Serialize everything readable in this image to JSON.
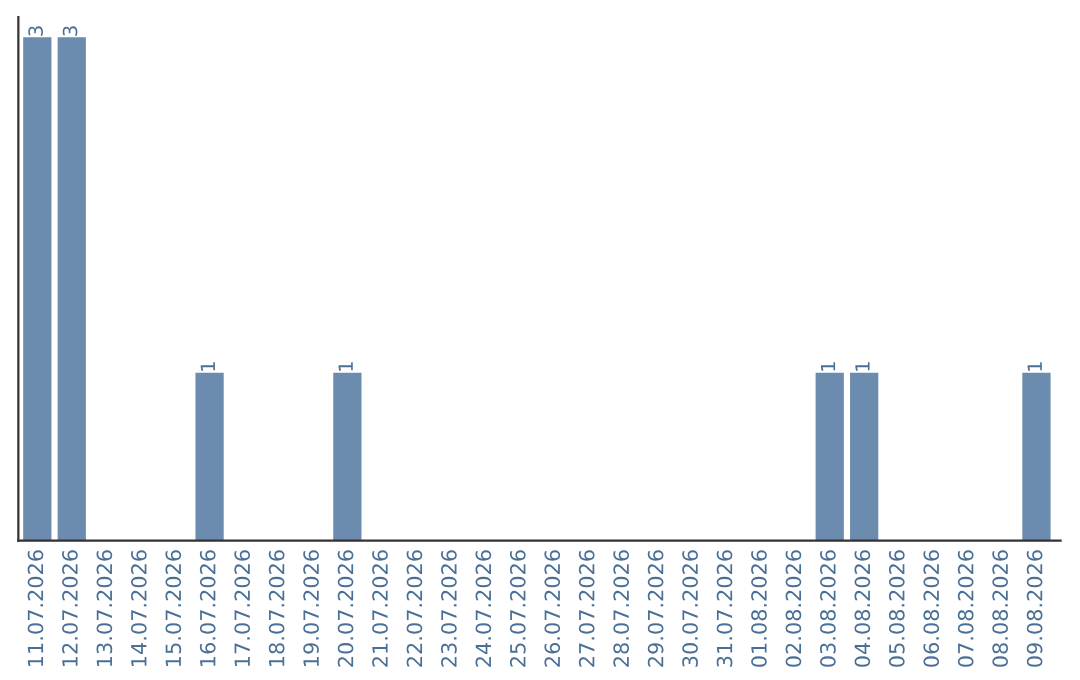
{
  "chart_data": {
    "type": "bar",
    "categories": [
      "11.07.2026",
      "12.07.2026",
      "13.07.2026",
      "14.07.2026",
      "15.07.2026",
      "16.07.2026",
      "17.07.2026",
      "18.07.2026",
      "19.07.2026",
      "20.07.2026",
      "21.07.2026",
      "22.07.2026",
      "23.07.2026",
      "24.07.2026",
      "25.07.2026",
      "26.07.2026",
      "27.07.2026",
      "28.07.2026",
      "29.07.2026",
      "30.07.2026",
      "31.07.2026",
      "01.08.2026",
      "02.08.2026",
      "03.08.2026",
      "04.08.2026",
      "05.08.2026",
      "06.08.2026",
      "07.08.2026",
      "08.08.2026",
      "09.08.2026"
    ],
    "values": [
      3,
      3,
      0,
      0,
      0,
      1,
      0,
      0,
      0,
      1,
      0,
      0,
      0,
      0,
      0,
      0,
      0,
      0,
      0,
      0,
      0,
      0,
      0,
      1,
      1,
      0,
      0,
      0,
      0,
      1
    ],
    "value_labels": [
      "3",
      "3",
      null,
      null,
      null,
      "1",
      null,
      null,
      null,
      "1",
      null,
      null,
      null,
      null,
      null,
      null,
      null,
      null,
      null,
      null,
      null,
      null,
      null,
      "1",
      "1",
      null,
      null,
      null,
      null,
      "1"
    ],
    "color": "#6b8cae",
    "grid": false,
    "legend": false
  }
}
